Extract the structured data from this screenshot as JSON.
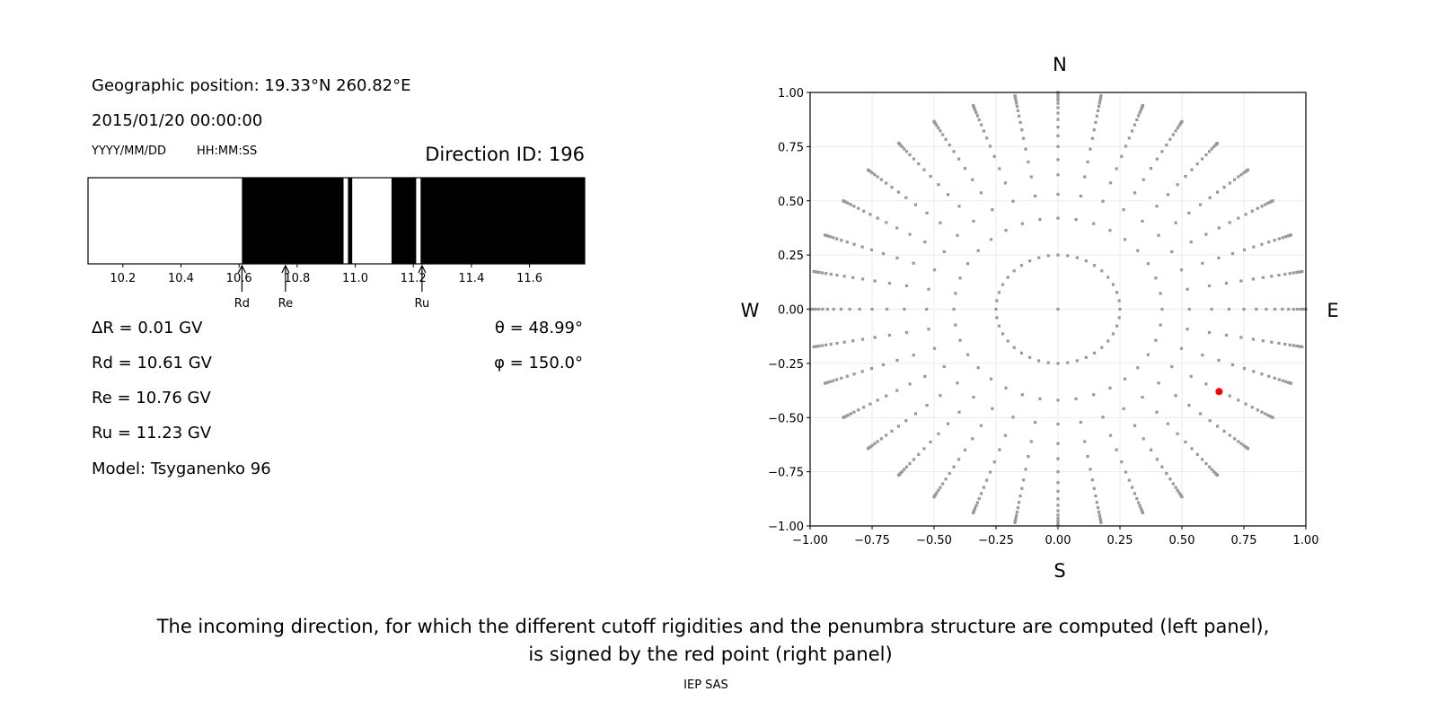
{
  "left_panel": {
    "geo_position": "Geographic position: 19.33°N 260.82°E",
    "datetime": "2015/01/20 00:00:00",
    "date_format": "YYYY/MM/DD",
    "time_format": "HH:MM:SS",
    "direction_id": "Direction ID: 196",
    "delta_r": "ΔR = 0.01 GV",
    "rd": "Rd = 10.61 GV",
    "re": "Re = 10.76 GV",
    "ru": "Ru = 11.23 GV",
    "model": "Model: Tsyganenko 96",
    "theta": "θ = 48.99°",
    "phi": "φ = 150.0°"
  },
  "chart_data": [
    {
      "type": "bar",
      "description_role": "penumbra",
      "xlim": [
        10.08,
        11.79
      ],
      "xticks": [
        "10.2",
        "10.4",
        "10.6",
        "10.8",
        "11.0",
        "11.2",
        "11.4",
        "11.6"
      ],
      "segments": [
        {
          "from": 10.08,
          "to": 10.61,
          "state": "allowed",
          "color": "#ffffff"
        },
        {
          "from": 10.61,
          "to": 10.96,
          "state": "forbidden",
          "color": "#000000"
        },
        {
          "from": 10.96,
          "to": 10.975,
          "state": "allowed",
          "color": "#ffffff"
        },
        {
          "from": 10.975,
          "to": 10.99,
          "state": "forbidden",
          "color": "#000000"
        },
        {
          "from": 10.99,
          "to": 11.125,
          "state": "allowed",
          "color": "#ffffff"
        },
        {
          "from": 11.125,
          "to": 11.21,
          "state": "forbidden",
          "color": "#000000"
        },
        {
          "from": 11.21,
          "to": 11.225,
          "state": "allowed",
          "color": "#ffffff"
        },
        {
          "from": 11.225,
          "to": 11.79,
          "state": "forbidden",
          "color": "#000000"
        }
      ],
      "markers": [
        {
          "label": "Rd",
          "value": 10.61
        },
        {
          "label": "Re",
          "value": 10.76
        },
        {
          "label": "Ru",
          "value": 11.23
        }
      ]
    },
    {
      "type": "scatter",
      "xlim": [
        -1,
        1
      ],
      "ylim": [
        -1,
        1
      ],
      "xticks": [
        "−1.00",
        "−0.75",
        "−0.50",
        "−0.25",
        "0.00",
        "0.25",
        "0.50",
        "0.75",
        "1.00"
      ],
      "yticks": [
        "−1.00",
        "−0.75",
        "−0.50",
        "−0.25",
        "0.00",
        "0.25",
        "0.50",
        "0.75",
        "1.00"
      ],
      "tick_values": [
        -1,
        -0.75,
        -0.5,
        -0.25,
        0,
        0.25,
        0.5,
        0.75,
        1
      ],
      "grid": true,
      "compass": {
        "north": "N",
        "south": "S",
        "west": "W",
        "east": "E"
      },
      "direction_grid": {
        "color": "#999999",
        "rings": [
          {
            "r": 0,
            "azimuth_step_deg": 360
          },
          {
            "r": 0.25,
            "azimuth_step_deg": 9
          },
          {
            "r": 0.42,
            "azimuth_step_deg": 10
          },
          {
            "r": 0.53,
            "azimuth_step_deg": 10
          },
          {
            "r": 0.62,
            "azimuth_step_deg": 10
          },
          {
            "r": 0.69,
            "azimuth_step_deg": 10
          },
          {
            "r": 0.75,
            "azimuth_step_deg": 10
          },
          {
            "r": 0.8,
            "azimuth_step_deg": 10
          },
          {
            "r": 0.84,
            "azimuth_step_deg": 10
          },
          {
            "r": 0.875,
            "azimuth_step_deg": 10
          },
          {
            "r": 0.905,
            "azimuth_step_deg": 10
          },
          {
            "r": 0.93,
            "azimuth_step_deg": 10
          },
          {
            "r": 0.95,
            "azimuth_step_deg": 10
          },
          {
            "r": 0.965,
            "azimuth_step_deg": 10
          },
          {
            "r": 0.978,
            "azimuth_step_deg": 10
          },
          {
            "r": 0.988,
            "azimuth_step_deg": 10
          },
          {
            "r": 0.995,
            "azimuth_step_deg": 10
          },
          {
            "r": 1.0,
            "azimuth_step_deg": 10
          }
        ]
      },
      "selected_point": {
        "x": 0.65,
        "y": -0.38,
        "color": "#ff0000"
      }
    }
  ],
  "caption": {
    "line1": "The incoming direction, for which the different cutoff rigidities and the penumbra structure are computed (left panel),",
    "line2": "is signed by the red point (right panel)",
    "credit": "IEP SAS"
  }
}
